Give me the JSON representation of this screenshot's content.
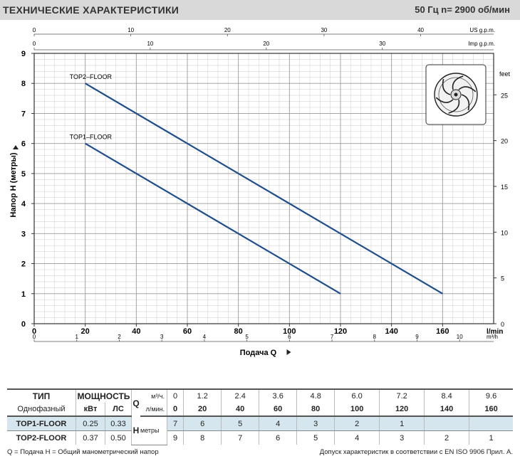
{
  "header": {
    "title": "ТЕХНИЧЕСКИЕ ХАРАКТЕРИСТИКИ",
    "spec": "50 Гц   n= 2900 об/мин"
  },
  "chart_data": {
    "type": "line",
    "xlabel": "Подача Q",
    "ylabel": "Напор Н (метры)",
    "x_unit_lmin": "l/min",
    "x_unit_m3h": "m³/h",
    "top_unit_us": "US g.p.m.",
    "top_unit_imp": "Imp g.p.m.",
    "right_unit": "feet",
    "xlim": [
      0,
      180
    ],
    "ylim": [
      0,
      9
    ],
    "x_ticks_lmin": [
      0,
      20,
      40,
      60,
      80,
      100,
      120,
      140,
      160
    ],
    "x_ticks_m3h": [
      0,
      1,
      2,
      3,
      4,
      5,
      6,
      7,
      8,
      9,
      10
    ],
    "x_ticks_us": [
      0,
      10,
      20,
      30,
      40
    ],
    "x_ticks_imp": [
      0,
      10,
      20,
      30
    ],
    "y_ticks": [
      0,
      1,
      2,
      3,
      4,
      5,
      6,
      7,
      8,
      9
    ],
    "y_ticks_feet": [
      0,
      5,
      10,
      15,
      20,
      25
    ],
    "grid": true,
    "series": [
      {
        "name": "TOP2–FLOOR",
        "x": [
          20,
          160
        ],
        "y": [
          8,
          1
        ]
      },
      {
        "name": "TOP1–FLOOR",
        "x": [
          20,
          120
        ],
        "y": [
          6,
          1
        ]
      }
    ],
    "line_color": "#1f4e8c"
  },
  "table": {
    "h_type": "ТИП",
    "h_power": "МОЩНОСТЬ",
    "q_symbol": "Q",
    "q_unit_m3h": "м³/ч.",
    "q_unit_lmin": "л/мин.",
    "phase_label": "Однофазный",
    "kw_label": "кВт",
    "hp_label": "ЛС",
    "h_symbol": "H",
    "h_unit": "метры",
    "q_m3h": [
      "0",
      "1.2",
      "2.4",
      "3.6",
      "4.8",
      "6.0",
      "7.2",
      "8.4",
      "9.6"
    ],
    "q_lmin": [
      "0",
      "20",
      "40",
      "60",
      "80",
      "100",
      "120",
      "140",
      "160"
    ],
    "rows": [
      {
        "model": "TOP1-FLOOR",
        "kw": "0.25",
        "hp": "0.33",
        "h": [
          "7",
          "6",
          "5",
          "4",
          "3",
          "2",
          "1",
          "",
          ""
        ]
      },
      {
        "model": "TOP2-FLOOR",
        "kw": "0.37",
        "hp": "0.50",
        "h": [
          "9",
          "8",
          "7",
          "6",
          "5",
          "4",
          "3",
          "2",
          "1"
        ]
      }
    ]
  },
  "footer": {
    "left": "Q = Подача   H = Общий манометрический напор",
    "right": "Допуск характеристик в соответствии с EN ISO 9906 Прил. A."
  }
}
